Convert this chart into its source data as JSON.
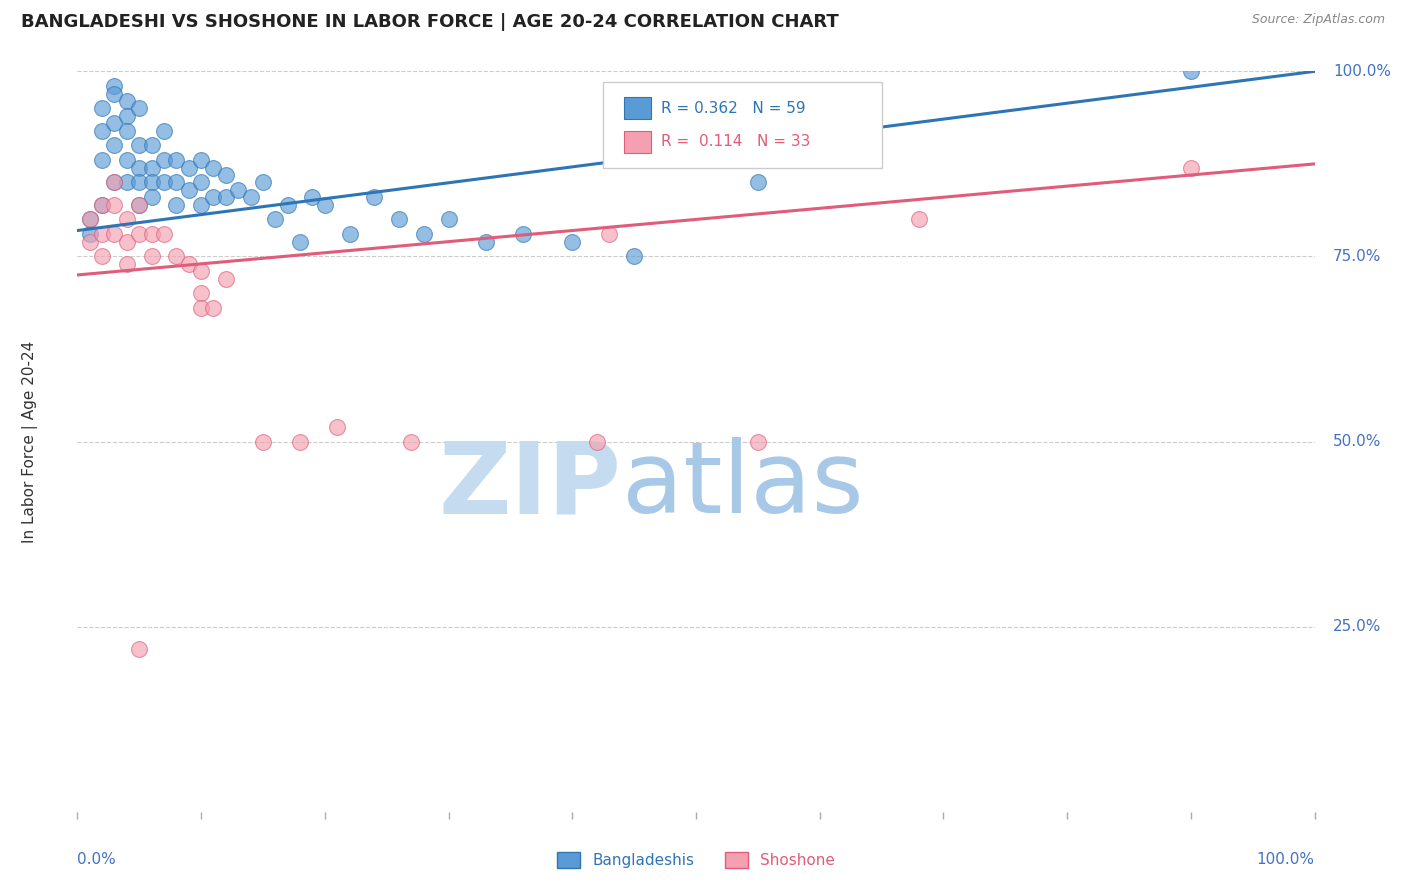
{
  "title": "BANGLADESHI VS SHOSHONE IN LABOR FORCE | AGE 20-24 CORRELATION CHART",
  "source_text": "Source: ZipAtlas.com",
  "ylabel": "In Labor Force | Age 20-24",
  "xlim": [
    0.0,
    1.0
  ],
  "ylim": [
    0.0,
    1.0
  ],
  "blue_R": 0.362,
  "blue_N": 59,
  "pink_R": 0.114,
  "pink_N": 33,
  "blue_color": "#5B9BD5",
  "pink_color": "#F4A0B0",
  "blue_line_color": "#2E75B6",
  "pink_line_color": "#E05C7A",
  "legend_blue_label": "Bangladeshis",
  "legend_pink_label": "Shoshone",
  "watermark_zip_color": "#C5DCF0",
  "watermark_atlas_color": "#A8C8E8",
  "blue_scatter_x": [
    0.01,
    0.01,
    0.02,
    0.02,
    0.02,
    0.02,
    0.03,
    0.03,
    0.03,
    0.03,
    0.03,
    0.04,
    0.04,
    0.04,
    0.04,
    0.04,
    0.05,
    0.05,
    0.05,
    0.05,
    0.05,
    0.06,
    0.06,
    0.06,
    0.06,
    0.07,
    0.07,
    0.07,
    0.08,
    0.08,
    0.08,
    0.09,
    0.09,
    0.1,
    0.1,
    0.1,
    0.11,
    0.11,
    0.12,
    0.12,
    0.13,
    0.14,
    0.15,
    0.16,
    0.17,
    0.18,
    0.19,
    0.2,
    0.22,
    0.24,
    0.26,
    0.28,
    0.3,
    0.33,
    0.36,
    0.4,
    0.45,
    0.55,
    0.9
  ],
  "blue_scatter_y": [
    0.8,
    0.78,
    0.95,
    0.92,
    0.88,
    0.82,
    0.98,
    0.97,
    0.93,
    0.9,
    0.85,
    0.96,
    0.94,
    0.92,
    0.88,
    0.85,
    0.95,
    0.9,
    0.87,
    0.85,
    0.82,
    0.9,
    0.87,
    0.85,
    0.83,
    0.92,
    0.88,
    0.85,
    0.88,
    0.85,
    0.82,
    0.87,
    0.84,
    0.88,
    0.85,
    0.82,
    0.87,
    0.83,
    0.86,
    0.83,
    0.84,
    0.83,
    0.85,
    0.8,
    0.82,
    0.77,
    0.83,
    0.82,
    0.78,
    0.83,
    0.8,
    0.78,
    0.8,
    0.77,
    0.78,
    0.77,
    0.75,
    0.85,
    1.0
  ],
  "pink_scatter_x": [
    0.01,
    0.01,
    0.02,
    0.02,
    0.02,
    0.03,
    0.03,
    0.03,
    0.04,
    0.04,
    0.04,
    0.05,
    0.05,
    0.06,
    0.06,
    0.07,
    0.08,
    0.09,
    0.1,
    0.1,
    0.1,
    0.11,
    0.12,
    0.15,
    0.18,
    0.21,
    0.27,
    0.42,
    0.43,
    0.55,
    0.68,
    0.9,
    0.05
  ],
  "pink_scatter_y": [
    0.8,
    0.77,
    0.82,
    0.78,
    0.75,
    0.85,
    0.82,
    0.78,
    0.8,
    0.77,
    0.74,
    0.82,
    0.78,
    0.78,
    0.75,
    0.78,
    0.75,
    0.74,
    0.73,
    0.7,
    0.68,
    0.68,
    0.72,
    0.5,
    0.5,
    0.52,
    0.5,
    0.5,
    0.78,
    0.5,
    0.8,
    0.87,
    0.22
  ],
  "blue_trend_x0": 0.0,
  "blue_trend_x1": 1.0,
  "blue_trend_y0": 0.785,
  "blue_trend_y1": 1.0,
  "pink_trend_x0": 0.0,
  "pink_trend_x1": 1.0,
  "pink_trend_y0": 0.725,
  "pink_trend_y1": 0.875
}
